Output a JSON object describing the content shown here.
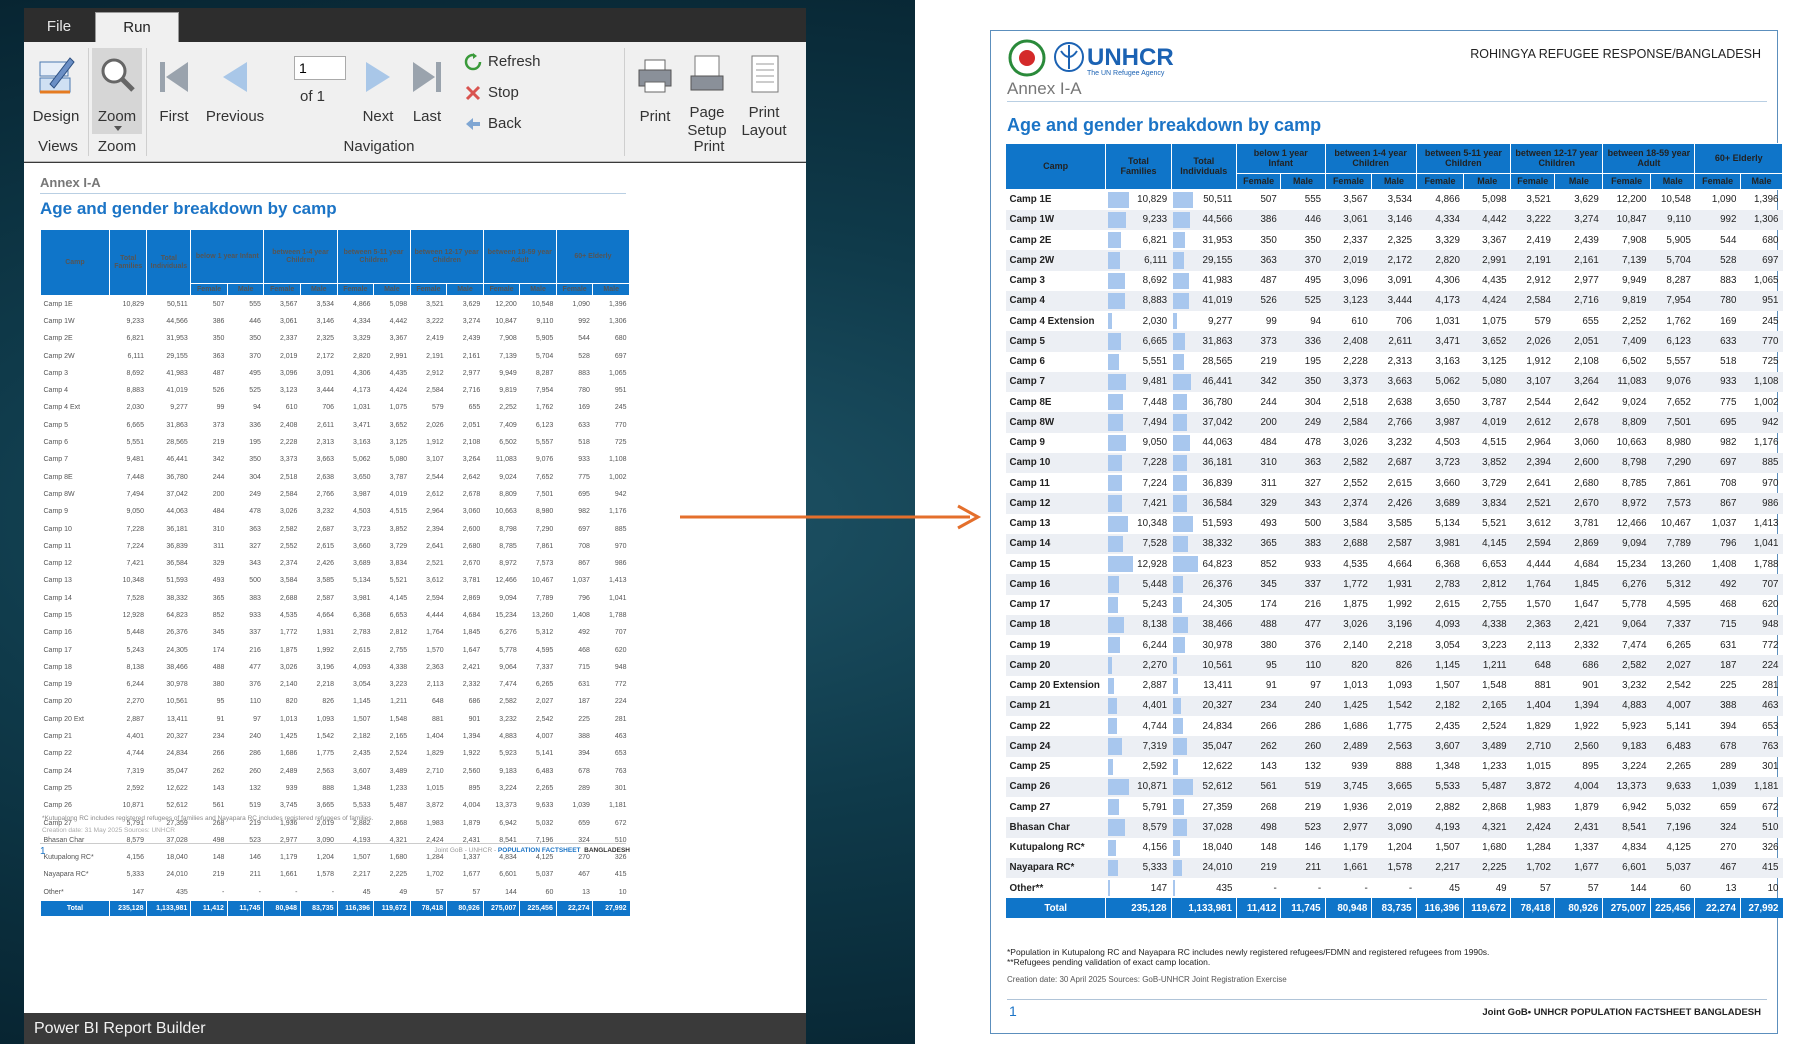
{
  "app": {
    "tabs": [
      "File",
      "Run"
    ],
    "status": "Power BI Report Builder",
    "ribbon": {
      "design": "Design",
      "zoom": "Zoom",
      "first": "First",
      "previous": "Previous",
      "next": "Next",
      "last": "Last",
      "page_value": "1",
      "of_label": "of  1",
      "refresh": "Refresh",
      "stop": "Stop",
      "back": "Back",
      "print": "Print",
      "page_setup": "Page\nSetup",
      "print_layout": "Print\nLayout",
      "groups": [
        "Views",
        "Zoom",
        "Navigation",
        "Print"
      ]
    }
  },
  "report_small": {
    "annex": "Annex I-A",
    "title": "Age and gender breakdown by camp",
    "headers": {
      "camp": "Camp",
      "total_families": "Total Families",
      "total_individuals": "Total Individuals",
      "groups": [
        "below 1 year Infant",
        "between 1-4 year Children",
        "between 5-11 year Children",
        "between 12-17 year Children",
        "between 18-59 year Adult",
        "60+ Elderly"
      ],
      "female": "Female",
      "male": "Male"
    },
    "camp_names": [
      "Camp 1E",
      "Camp 1W",
      "Camp 2E",
      "Camp 2W",
      "Camp 3",
      "Camp 4",
      "Camp 4 Ext",
      "Camp 5",
      "Camp 6",
      "Camp 7",
      "Camp 8E",
      "Camp 8W",
      "Camp 9",
      "Camp 10",
      "Camp 11",
      "Camp 12",
      "Camp 13",
      "Camp 14",
      "Camp 15",
      "Camp 16",
      "Camp 17",
      "Camp 18",
      "Camp 19",
      "Camp 20",
      "Camp 20 Ext",
      "Camp 21",
      "Camp 22",
      "Camp 24",
      "Camp 25",
      "Camp 26",
      "Camp 27",
      "Bhasan Char",
      "Kutupalong RC*",
      "Nayapara RC*",
      "Other*"
    ],
    "footnote": "*Kutupalong RC includes  registered refugees of  families and Nayapara RC includes  registered refugees of  families.",
    "creation": "Creation date: 31 May 2025   Sources: UNHCR",
    "page_number": "1",
    "brand_pre": "Joint GoB - UNHCR - ",
    "brand_mid": "POPULATION FACTSHEET",
    "brand_post": "BANGLADESH"
  },
  "report_right": {
    "logo_text": "UNHCR",
    "logo_sub": "The UN Refugee Agency",
    "header": "ROHINGYA REFUGEE RESPONSE/BANGLADESH",
    "annex": "Annex I-A",
    "title": "Age and gender breakdown by camp",
    "headers": {
      "camp": "Camp",
      "total_families": "Total Families",
      "total_individuals": "Total Individuals",
      "groups": [
        "below 1 year Infant",
        "between 1-4 year Children",
        "between 5-11 year Children",
        "between 12-17 year Children",
        "between 18-59 year Adult",
        "60+ Elderly"
      ],
      "female": "Female",
      "male": "Male"
    },
    "camp_names": [
      "Camp 1E",
      "Camp 1W",
      "Camp 2E",
      "Camp 2W",
      "Camp 3",
      "Camp 4",
      "Camp 4 Extension",
      "Camp 5",
      "Camp 6",
      "Camp 7",
      "Camp 8E",
      "Camp 8W",
      "Camp 9",
      "Camp 10",
      "Camp 11",
      "Camp 12",
      "Camp 13",
      "Camp 14",
      "Camp 15",
      "Camp 16",
      "Camp 17",
      "Camp 18",
      "Camp 19",
      "Camp 20",
      "Camp 20 Extension",
      "Camp 21",
      "Camp 22",
      "Camp 24",
      "Camp 25",
      "Camp 26",
      "Camp 27",
      "Bhasan Char",
      "Kutupalong RC*",
      "Nayapara RC*",
      "Other**"
    ],
    "footnote1": "*Population in Kutupalong RC and Nayapara RC includes newly registered refugees/FDMN and registered refugees from 1990s.",
    "footnote2": "**Refugees pending validation of exact camp location.",
    "creation": "Creation date: 30 April 2025   Sources: GoB-UNHCR Joint Registration Exercise",
    "page_number": "1",
    "brand": "Joint GoB• UNHCR   POPULATION FACTSHEET   BANGLADESH"
  },
  "rows": [
    [
      "10,829",
      "50,511",
      "507",
      "555",
      "3,567",
      "3,534",
      "4,866",
      "5,098",
      "3,521",
      "3,629",
      "12,200",
      "10,548",
      "1,090",
      "1,396"
    ],
    [
      "9,233",
      "44,566",
      "386",
      "446",
      "3,061",
      "3,146",
      "4,334",
      "4,442",
      "3,222",
      "3,274",
      "10,847",
      "9,110",
      "992",
      "1,306"
    ],
    [
      "6,821",
      "31,953",
      "350",
      "350",
      "2,337",
      "2,325",
      "3,329",
      "3,367",
      "2,419",
      "2,439",
      "7,908",
      "5,905",
      "544",
      "680"
    ],
    [
      "6,111",
      "29,155",
      "363",
      "370",
      "2,019",
      "2,172",
      "2,820",
      "2,991",
      "2,191",
      "2,161",
      "7,139",
      "5,704",
      "528",
      "697"
    ],
    [
      "8,692",
      "41,983",
      "487",
      "495",
      "3,096",
      "3,091",
      "4,306",
      "4,435",
      "2,912",
      "2,977",
      "9,949",
      "8,287",
      "883",
      "1,065"
    ],
    [
      "8,883",
      "41,019",
      "526",
      "525",
      "3,123",
      "3,444",
      "4,173",
      "4,424",
      "2,584",
      "2,716",
      "9,819",
      "7,954",
      "780",
      "951"
    ],
    [
      "2,030",
      "9,277",
      "99",
      "94",
      "610",
      "706",
      "1,031",
      "1,075",
      "579",
      "655",
      "2,252",
      "1,762",
      "169",
      "245"
    ],
    [
      "6,665",
      "31,863",
      "373",
      "336",
      "2,408",
      "2,611",
      "3,471",
      "3,652",
      "2,026",
      "2,051",
      "7,409",
      "6,123",
      "633",
      "770"
    ],
    [
      "5,551",
      "28,565",
      "219",
      "195",
      "2,228",
      "2,313",
      "3,163",
      "3,125",
      "1,912",
      "2,108",
      "6,502",
      "5,557",
      "518",
      "725"
    ],
    [
      "9,481",
      "46,441",
      "342",
      "350",
      "3,373",
      "3,663",
      "5,062",
      "5,080",
      "3,107",
      "3,264",
      "11,083",
      "9,076",
      "933",
      "1,108"
    ],
    [
      "7,448",
      "36,780",
      "244",
      "304",
      "2,518",
      "2,638",
      "3,650",
      "3,787",
      "2,544",
      "2,642",
      "9,024",
      "7,652",
      "775",
      "1,002"
    ],
    [
      "7,494",
      "37,042",
      "200",
      "249",
      "2,584",
      "2,766",
      "3,987",
      "4,019",
      "2,612",
      "2,678",
      "8,809",
      "7,501",
      "695",
      "942"
    ],
    [
      "9,050",
      "44,063",
      "484",
      "478",
      "3,026",
      "3,232",
      "4,503",
      "4,515",
      "2,964",
      "3,060",
      "10,663",
      "8,980",
      "982",
      "1,176"
    ],
    [
      "7,228",
      "36,181",
      "310",
      "363",
      "2,582",
      "2,687",
      "3,723",
      "3,852",
      "2,394",
      "2,600",
      "8,798",
      "7,290",
      "697",
      "885"
    ],
    [
      "7,224",
      "36,839",
      "311",
      "327",
      "2,552",
      "2,615",
      "3,660",
      "3,729",
      "2,641",
      "2,680",
      "8,785",
      "7,861",
      "708",
      "970"
    ],
    [
      "7,421",
      "36,584",
      "329",
      "343",
      "2,374",
      "2,426",
      "3,689",
      "3,834",
      "2,521",
      "2,670",
      "8,972",
      "7,573",
      "867",
      "986"
    ],
    [
      "10,348",
      "51,593",
      "493",
      "500",
      "3,584",
      "3,585",
      "5,134",
      "5,521",
      "3,612",
      "3,781",
      "12,466",
      "10,467",
      "1,037",
      "1,413"
    ],
    [
      "7,528",
      "38,332",
      "365",
      "383",
      "2,688",
      "2,587",
      "3,981",
      "4,145",
      "2,594",
      "2,869",
      "9,094",
      "7,789",
      "796",
      "1,041"
    ],
    [
      "12,928",
      "64,823",
      "852",
      "933",
      "4,535",
      "4,664",
      "6,368",
      "6,653",
      "4,444",
      "4,684",
      "15,234",
      "13,260",
      "1,408",
      "1,788"
    ],
    [
      "5,448",
      "26,376",
      "345",
      "337",
      "1,772",
      "1,931",
      "2,783",
      "2,812",
      "1,764",
      "1,845",
      "6,276",
      "5,312",
      "492",
      "707"
    ],
    [
      "5,243",
      "24,305",
      "174",
      "216",
      "1,875",
      "1,992",
      "2,615",
      "2,755",
      "1,570",
      "1,647",
      "5,778",
      "4,595",
      "468",
      "620"
    ],
    [
      "8,138",
      "38,466",
      "488",
      "477",
      "3,026",
      "3,196",
      "4,093",
      "4,338",
      "2,363",
      "2,421",
      "9,064",
      "7,337",
      "715",
      "948"
    ],
    [
      "6,244",
      "30,978",
      "380",
      "376",
      "2,140",
      "2,218",
      "3,054",
      "3,223",
      "2,113",
      "2,332",
      "7,474",
      "6,265",
      "631",
      "772"
    ],
    [
      "2,270",
      "10,561",
      "95",
      "110",
      "820",
      "826",
      "1,145",
      "1,211",
      "648",
      "686",
      "2,582",
      "2,027",
      "187",
      "224"
    ],
    [
      "2,887",
      "13,411",
      "91",
      "97",
      "1,013",
      "1,093",
      "1,507",
      "1,548",
      "881",
      "901",
      "3,232",
      "2,542",
      "225",
      "281"
    ],
    [
      "4,401",
      "20,327",
      "234",
      "240",
      "1,425",
      "1,542",
      "2,182",
      "2,165",
      "1,404",
      "1,394",
      "4,883",
      "4,007",
      "388",
      "463"
    ],
    [
      "4,744",
      "24,834",
      "266",
      "286",
      "1,686",
      "1,775",
      "2,435",
      "2,524",
      "1,829",
      "1,922",
      "5,923",
      "5,141",
      "394",
      "653"
    ],
    [
      "7,319",
      "35,047",
      "262",
      "260",
      "2,489",
      "2,563",
      "3,607",
      "3,489",
      "2,710",
      "2,560",
      "9,183",
      "6,483",
      "678",
      "763"
    ],
    [
      "2,592",
      "12,622",
      "143",
      "132",
      "939",
      "888",
      "1,348",
      "1,233",
      "1,015",
      "895",
      "3,224",
      "2,265",
      "289",
      "301"
    ],
    [
      "10,871",
      "52,612",
      "561",
      "519",
      "3,745",
      "3,665",
      "5,533",
      "5,487",
      "3,872",
      "4,004",
      "13,373",
      "9,633",
      "1,039",
      "1,181"
    ],
    [
      "5,791",
      "27,359",
      "268",
      "219",
      "1,936",
      "2,019",
      "2,882",
      "2,868",
      "1,983",
      "1,879",
      "6,942",
      "5,032",
      "659",
      "672"
    ],
    [
      "8,579",
      "37,028",
      "498",
      "523",
      "2,977",
      "3,090",
      "4,193",
      "4,321",
      "2,424",
      "2,431",
      "8,541",
      "7,196",
      "324",
      "510"
    ],
    [
      "4,156",
      "18,040",
      "148",
      "146",
      "1,179",
      "1,204",
      "1,507",
      "1,680",
      "1,284",
      "1,337",
      "4,834",
      "4,125",
      "270",
      "326"
    ],
    [
      "5,333",
      "24,010",
      "219",
      "211",
      "1,661",
      "1,578",
      "2,217",
      "2,225",
      "1,702",
      "1,677",
      "6,601",
      "5,037",
      "467",
      "415"
    ],
    [
      "147",
      "435",
      "-",
      "-",
      "-",
      "-",
      "45",
      "49",
      "57",
      "57",
      "144",
      "60",
      "13",
      "10"
    ]
  ],
  "totals": [
    "Total",
    "235,128",
    "1,133,981",
    "11,412",
    "11,745",
    "80,948",
    "83,735",
    "116,396",
    "119,672",
    "78,418",
    "80,926",
    "275,007",
    "225,456",
    "22,274",
    "27,992"
  ],
  "colors": {
    "accent": "#0f75c9",
    "title": "#1b74c6",
    "arrow": "#e46f2c"
  }
}
